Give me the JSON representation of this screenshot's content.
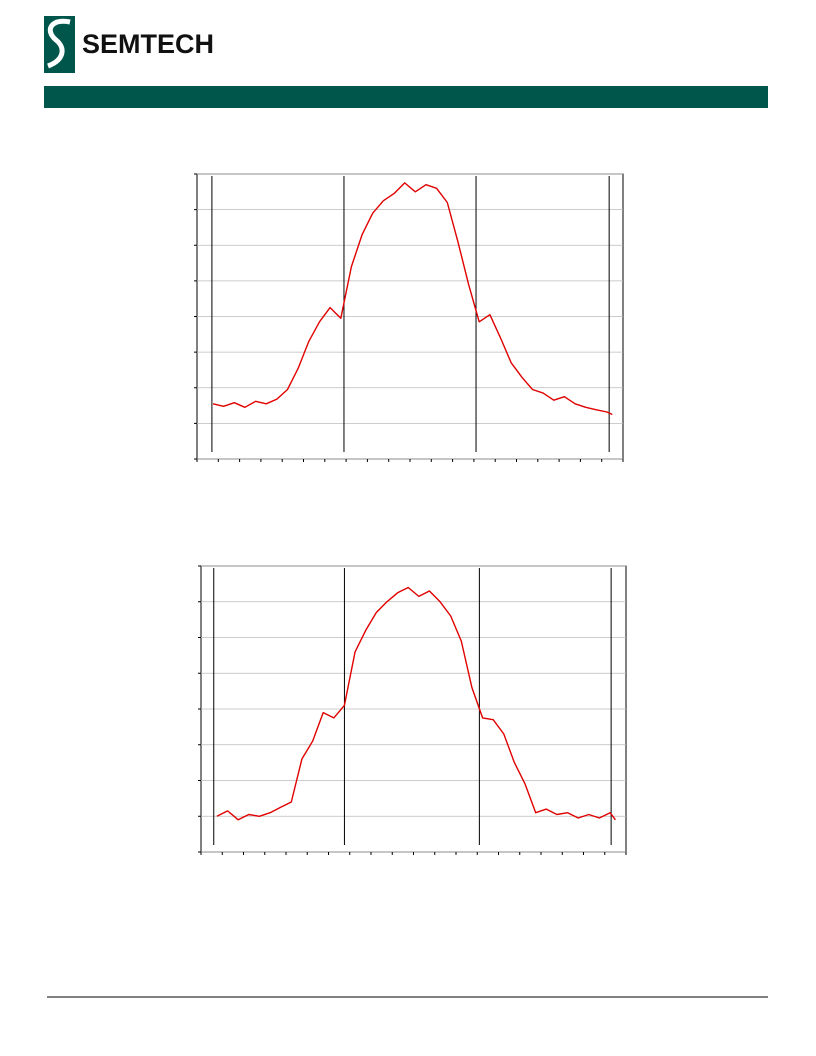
{
  "header": {
    "logo_text": "SEMTECH"
  },
  "chart_data": [
    {
      "type": "line",
      "color": "#e00000",
      "xlim": [
        0,
        20
      ],
      "ylim": [
        0,
        8
      ],
      "xticks": [
        0,
        1,
        2,
        3,
        4,
        5,
        6,
        7,
        8,
        9,
        10,
        11,
        12,
        13,
        14,
        15,
        16,
        17,
        18,
        19,
        20
      ],
      "yticks": [
        0,
        1,
        2,
        3,
        4,
        5,
        6,
        7,
        8
      ],
      "grid": true,
      "markers": [
        0.7,
        6.9,
        13.1,
        19.35
      ],
      "x": [
        0.75,
        1.25,
        1.75,
        2.25,
        2.75,
        3.25,
        3.75,
        4.25,
        4.75,
        5.25,
        5.75,
        6.25,
        6.75,
        7.25,
        7.75,
        8.25,
        8.75,
        9.25,
        9.75,
        10.25,
        10.75,
        11.25,
        11.75,
        12.25,
        12.75,
        13.25,
        13.75,
        14.25,
        14.75,
        15.25,
        15.75,
        16.25,
        16.75,
        17.25,
        17.75,
        18.25,
        18.75,
        19.25,
        19.5
      ],
      "values": [
        1.55,
        1.48,
        1.58,
        1.45,
        1.62,
        1.55,
        1.68,
        1.95,
        2.55,
        3.3,
        3.85,
        4.25,
        3.95,
        5.4,
        6.3,
        6.9,
        7.25,
        7.45,
        7.75,
        7.5,
        7.7,
        7.6,
        7.2,
        6.1,
        4.9,
        3.85,
        4.05,
        3.4,
        2.7,
        2.3,
        1.95,
        1.85,
        1.65,
        1.75,
        1.55,
        1.45,
        1.38,
        1.32,
        1.25
      ]
    },
    {
      "type": "line",
      "color": "#e00000",
      "xlim": [
        0,
        20
      ],
      "ylim": [
        0,
        8
      ],
      "xticks": [
        0,
        1,
        2,
        3,
        4,
        5,
        6,
        7,
        8,
        9,
        10,
        11,
        12,
        13,
        14,
        15,
        16,
        17,
        18,
        19,
        20
      ],
      "yticks": [
        0,
        1,
        2,
        3,
        4,
        5,
        6,
        7,
        8
      ],
      "grid": true,
      "markers": [
        0.6,
        6.75,
        13.1,
        19.3
      ],
      "x": [
        0.75,
        1.25,
        1.75,
        2.25,
        2.75,
        3.25,
        3.75,
        4.25,
        4.75,
        5.25,
        5.75,
        6.25,
        6.75,
        7.25,
        7.75,
        8.25,
        8.75,
        9.25,
        9.75,
        10.25,
        10.75,
        11.25,
        11.75,
        12.25,
        12.75,
        13.25,
        13.75,
        14.25,
        14.75,
        15.25,
        15.75,
        16.25,
        16.75,
        17.25,
        17.75,
        18.25,
        18.75,
        19.25,
        19.5
      ],
      "values": [
        1.0,
        1.15,
        0.9,
        1.05,
        1.0,
        1.1,
        1.25,
        1.4,
        2.6,
        3.1,
        3.9,
        3.75,
        4.1,
        5.6,
        6.2,
        6.7,
        7.0,
        7.25,
        7.4,
        7.15,
        7.3,
        7.0,
        6.6,
        5.9,
        4.6,
        3.75,
        3.7,
        3.3,
        2.5,
        1.9,
        1.1,
        1.2,
        1.05,
        1.1,
        0.95,
        1.05,
        0.95,
        1.1,
        0.9
      ]
    }
  ]
}
